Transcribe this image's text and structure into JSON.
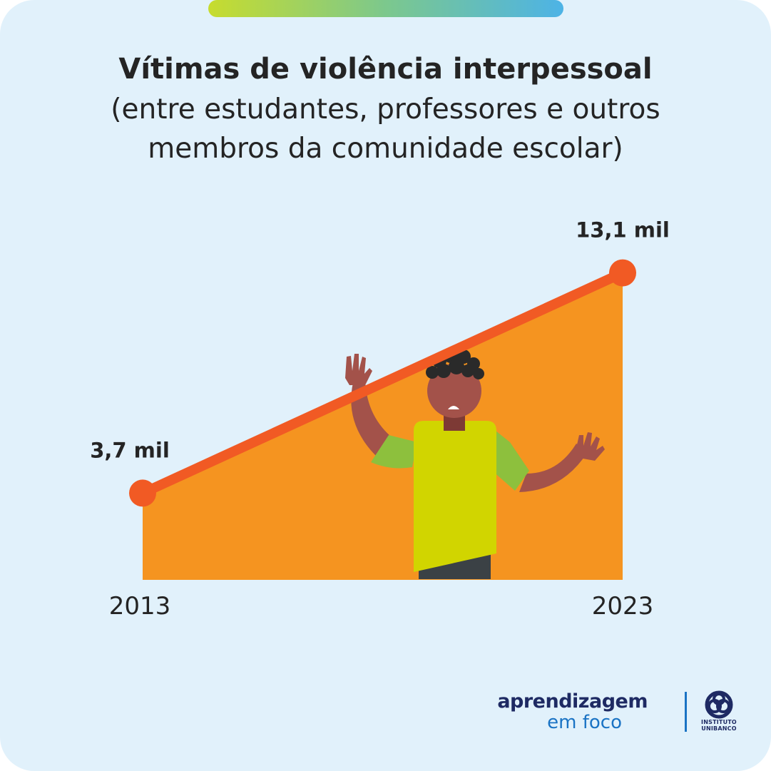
{
  "header": {
    "title": "Vítimas de violência interpessoal",
    "subtitle_line1": "(entre estudantes, professores e outros",
    "subtitle_line2": "membros da comunidade escolar)"
  },
  "chart_data": {
    "type": "area",
    "categories": [
      "2013",
      "2023"
    ],
    "values": [
      3.7,
      13.1
    ],
    "data_labels": [
      "3,7 mil",
      "13,1 mil"
    ],
    "ylim": [
      0,
      14
    ],
    "grid": false,
    "colors": {
      "area": "#f59420",
      "line": "#f15a24",
      "point": "#f15a24"
    }
  },
  "footer": {
    "brand_word": "aprendizagem",
    "brand_sub": "em foco",
    "logo_line1": "INSTITUTO",
    "logo_line2": "UNIBANCO"
  }
}
